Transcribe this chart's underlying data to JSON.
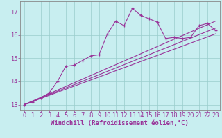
{
  "title": "",
  "xlabel": "Windchill (Refroidissement éolien,°C)",
  "ylabel": "",
  "bg_color": "#c8eef0",
  "line_color": "#993399",
  "grid_color": "#99cccc",
  "axis_color": "#993399",
  "spine_color": "#888888",
  "xlim": [
    -0.5,
    23.5
  ],
  "ylim": [
    12.75,
    17.45
  ],
  "xticks": [
    0,
    1,
    2,
    3,
    4,
    5,
    6,
    7,
    8,
    9,
    10,
    11,
    12,
    13,
    14,
    15,
    16,
    17,
    18,
    19,
    20,
    21,
    22,
    23
  ],
  "yticks": [
    13,
    14,
    15,
    16,
    17
  ],
  "main_x": [
    0,
    1,
    2,
    3,
    4,
    5,
    6,
    7,
    8,
    9,
    10,
    11,
    12,
    13,
    14,
    15,
    16,
    17,
    18,
    19,
    20,
    21,
    22,
    23
  ],
  "main_y": [
    13.0,
    13.1,
    13.3,
    13.5,
    14.0,
    14.65,
    14.7,
    14.9,
    15.1,
    15.15,
    16.05,
    16.6,
    16.4,
    17.15,
    16.85,
    16.7,
    16.55,
    15.85,
    15.9,
    15.85,
    15.9,
    16.4,
    16.5,
    16.2
  ],
  "line1_x": [
    0,
    23
  ],
  "line1_y": [
    13.0,
    16.05
  ],
  "line2_x": [
    0,
    23
  ],
  "line2_y": [
    13.0,
    16.3
  ],
  "line3_x": [
    0,
    23
  ],
  "line3_y": [
    13.0,
    16.6
  ],
  "xlabel_fontsize": 6.5,
  "tick_fontsize": 6.0
}
